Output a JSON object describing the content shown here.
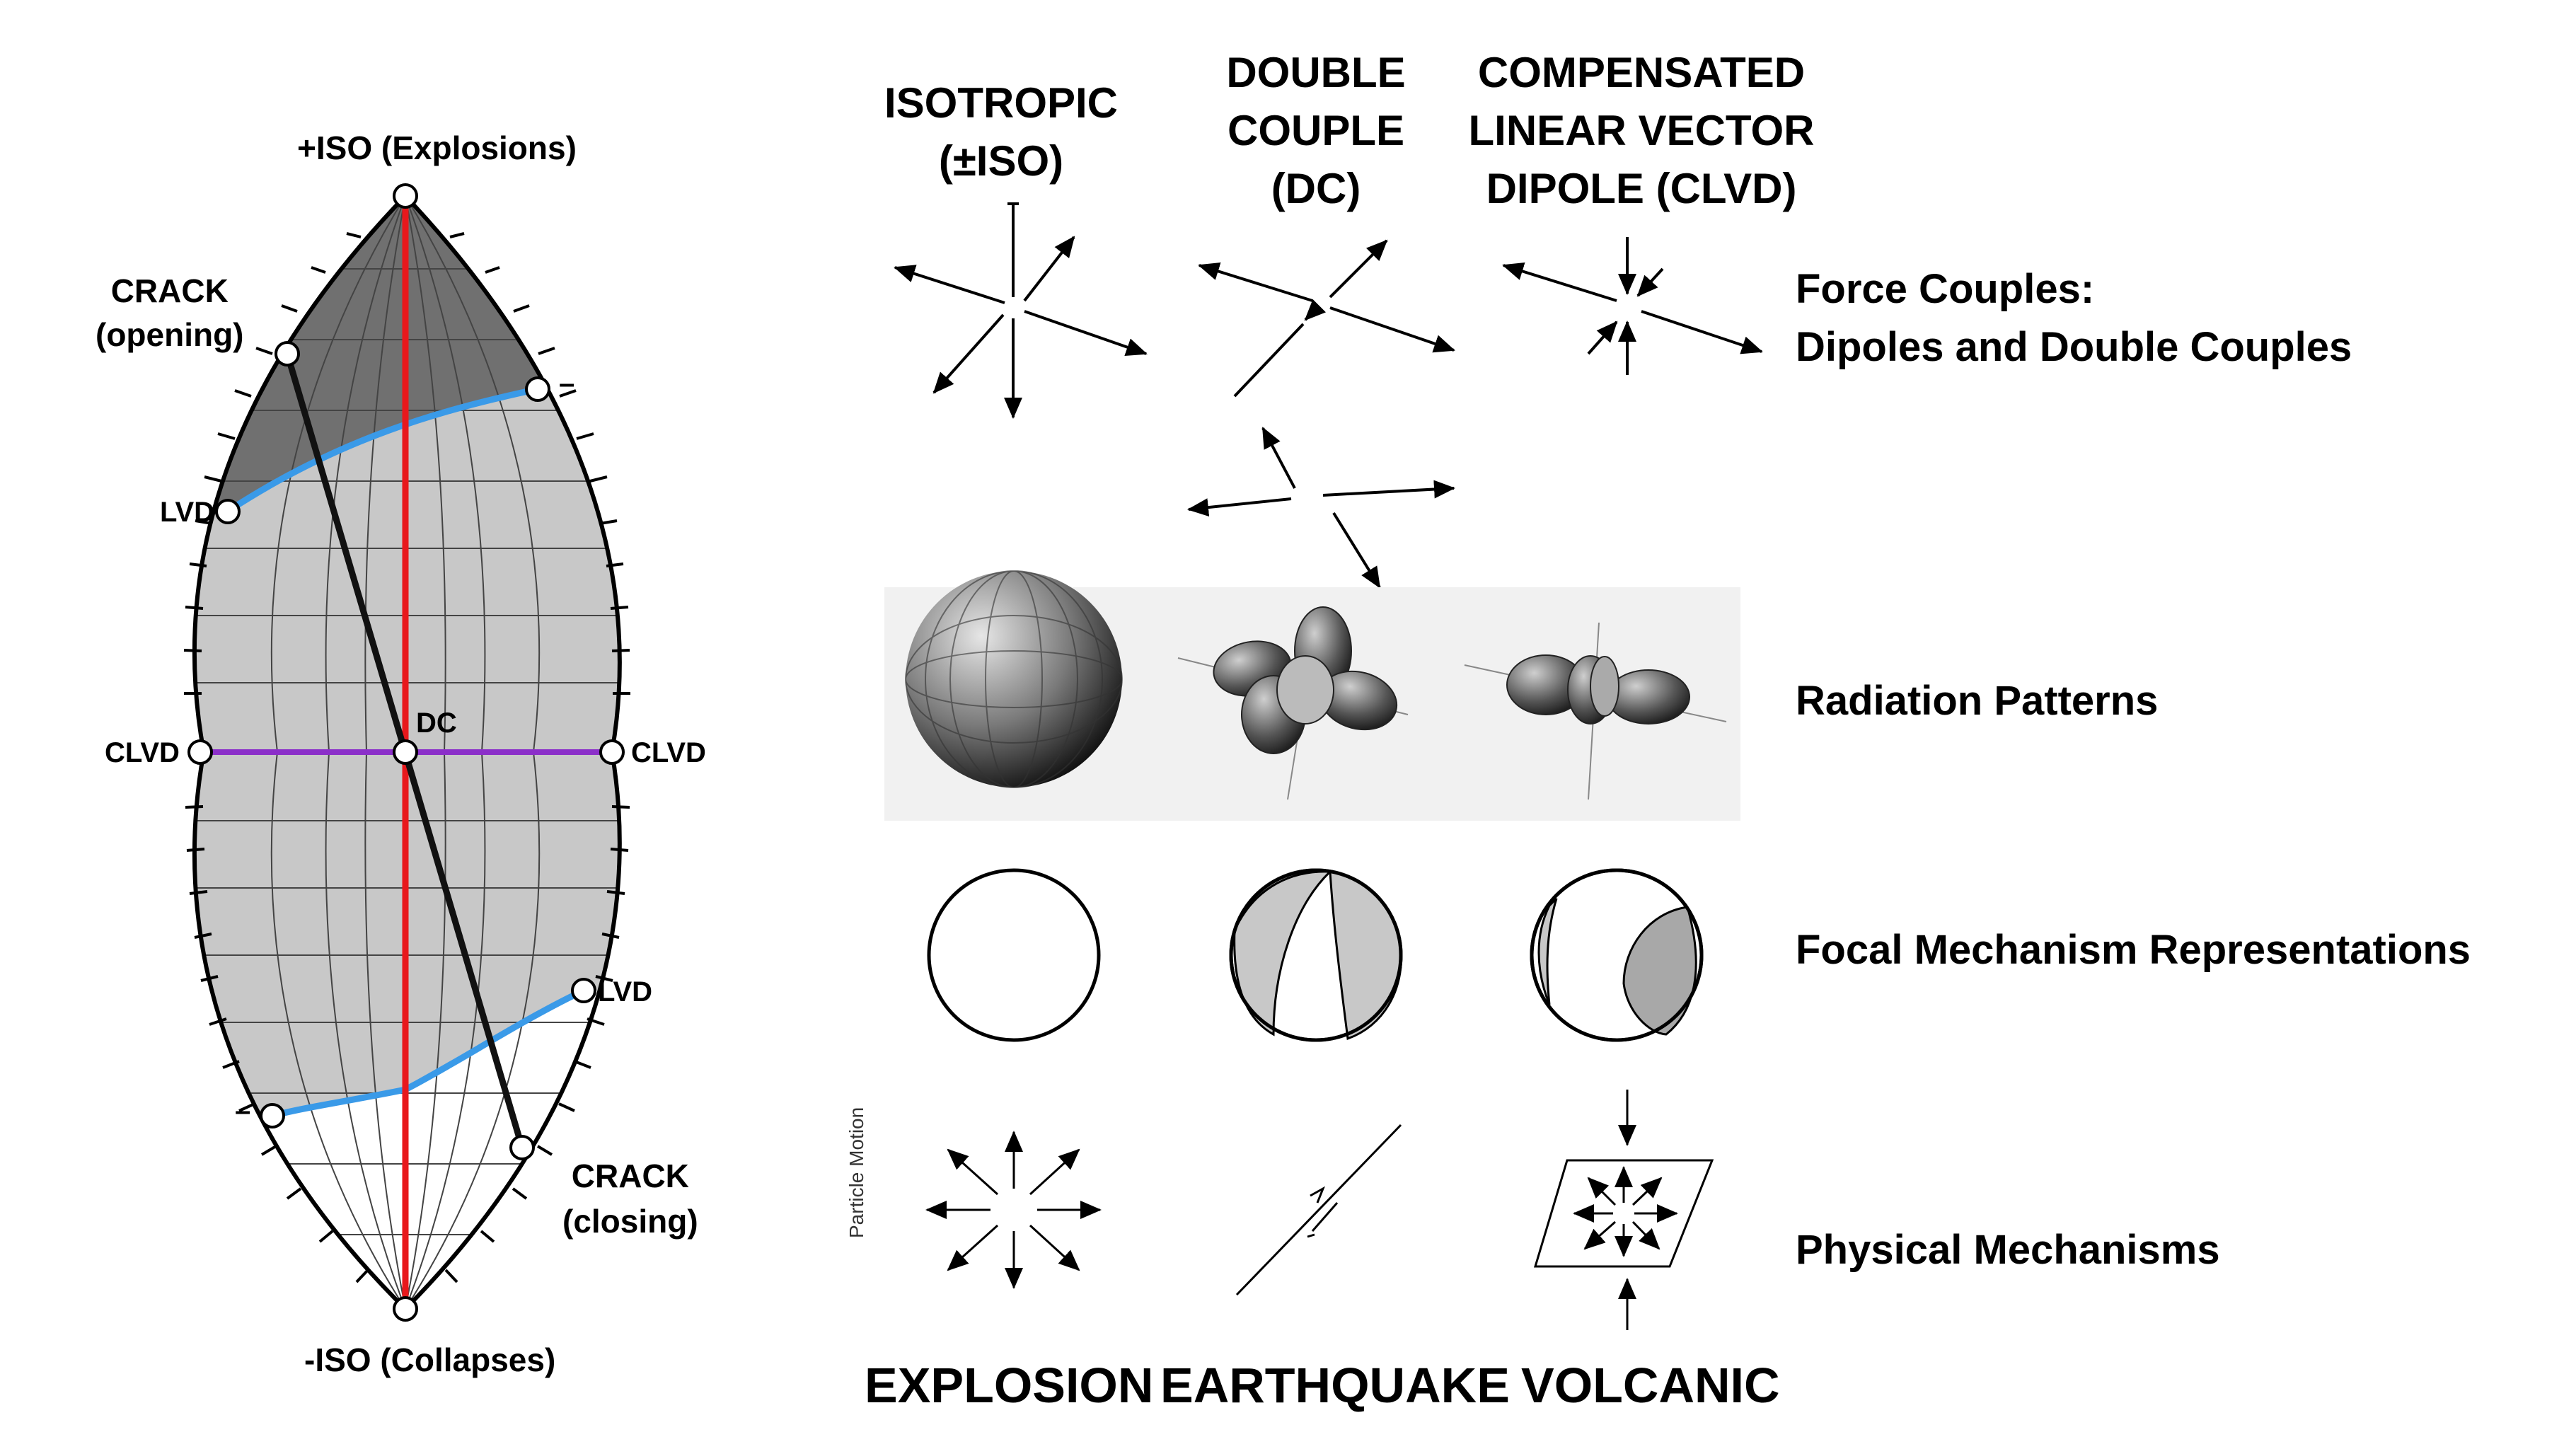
{
  "lune": {
    "top_label": "+ISO (Explosions)",
    "bottom_label": "-ISO (Collapses)",
    "crack_opening": [
      "CRACK",
      "(opening)"
    ],
    "crack_closing": [
      "CRACK",
      "(closing)"
    ],
    "lvd_upper": "LVD",
    "lvd_lower": "LVD",
    "clvd_left": "CLVD",
    "clvd_right": "CLVD",
    "dc": "DC",
    "minus_upper": "–",
    "minus_lower": "–",
    "colors": {
      "vertical_axis": "#e8181c",
      "horizontal_axis": "#8b2fc9",
      "lvd_curve": "#3a9ae8",
      "crack_line": "#111111",
      "upper_fill": "#707070",
      "middle_fill": "#c8c8c8",
      "lower_fill": "#ffffff"
    }
  },
  "columns": {
    "isotropic": "ISOTROPIC\n(±ISO)",
    "double_couple": "DOUBLE\nCOUPLE\n(DC)",
    "clvd": "COMPENSATED\nLINEAR VECTOR\nDIPOLE (CLVD)"
  },
  "rows": {
    "force_couples": [
      "Force Couples:",
      "Dipoles and Double Couples"
    ],
    "radiation": "Radiation Patterns",
    "focal": "Focal Mechanism Representations",
    "physical": "Physical Mechanisms"
  },
  "particle_motion": "Particle Motion",
  "bottom": {
    "explosion": "EXPLOSION",
    "earthquake": "EARTHQUAKE",
    "volcanic": "VOLCANIC"
  }
}
